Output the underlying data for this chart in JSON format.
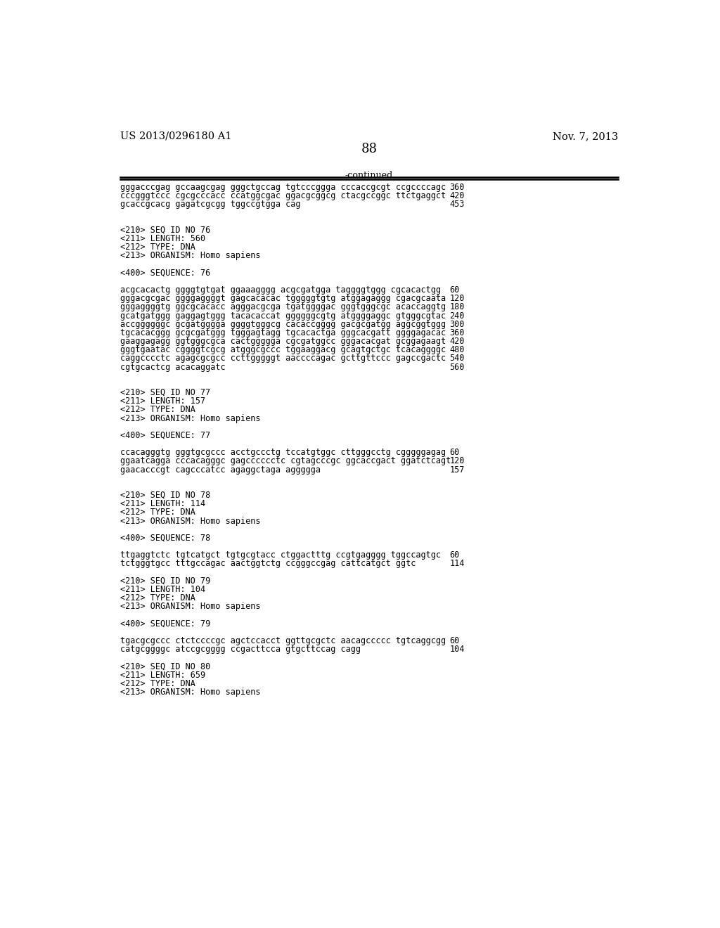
{
  "page_number": "88",
  "left_header": "US 2013/0296180 A1",
  "right_header": "Nov. 7, 2013",
  "continued_label": "-continued",
  "background_color": "#ffffff",
  "text_color": "#000000",
  "font_size_header": 10.5,
  "font_size_body": 9.2,
  "font_size_page_num": 13,
  "mono_size": 8.5,
  "lines": [
    {
      "text": "gggacccgag gccaagcgag gggctgccag tgtcccggga cccaccgcgt ccgccccagc",
      "num": "360",
      "type": "seq"
    },
    {
      "text": "cccgggtccc cgcgcccacc ccatggcgac ggacgcggcg ctacgccggc ttctgaggct",
      "num": "420",
      "type": "seq"
    },
    {
      "text": "gcaccgcacg gagatcgcgg tggccgtgga cag",
      "num": "453",
      "type": "seq"
    },
    {
      "text": "",
      "type": "blank"
    },
    {
      "text": "",
      "type": "blank"
    },
    {
      "text": "<210> SEQ ID NO 76",
      "type": "meta"
    },
    {
      "text": "<211> LENGTH: 560",
      "type": "meta"
    },
    {
      "text": "<212> TYPE: DNA",
      "type": "meta"
    },
    {
      "text": "<213> ORGANISM: Homo sapiens",
      "type": "meta"
    },
    {
      "text": "",
      "type": "blank"
    },
    {
      "text": "<400> SEQUENCE: 76",
      "type": "meta"
    },
    {
      "text": "",
      "type": "blank"
    },
    {
      "text": "acgcacactg ggggtgtgat ggaaagggg acgcgatgga taggggtggg cgcacactgg",
      "num": "60",
      "type": "seq"
    },
    {
      "text": "gggacgcgac ggggaggggt gagcacacac tgggggtgtg atggagaggg cgacgcaata",
      "num": "120",
      "type": "seq"
    },
    {
      "text": "gggaggggtg ggcgcacacc agggacgcga tgatggggac gggtgggcgc acaccaggtg",
      "num": "180",
      "type": "seq"
    },
    {
      "text": "gcatgatggg gaggagtggg tacacaccat ggggggcgtg atggggaggc gtgggcgtac",
      "num": "240",
      "type": "seq"
    },
    {
      "text": "accggggggc gcgatgggga ggggtgggcg cacaccgggg gacgcgatgg aggcggtggg",
      "num": "300",
      "type": "seq"
    },
    {
      "text": "tgcacacggg gcgcgatggg tgggagtagg tgcacactga gggcacgatt ggggagacac",
      "num": "360",
      "type": "seq"
    },
    {
      "text": "gaaggagagg ggtgggcgca cactggggga cgcgatggcc gggacacgat gcggagaagt",
      "num": "420",
      "type": "seq"
    },
    {
      "text": "gggtgaatac cggggtcgcg atgggcgccc tggaaggacg gcagtgctgc tcacaggggc",
      "num": "480",
      "type": "seq"
    },
    {
      "text": "caggcccctc agagcgcgcc ccttgggggt aaccccagac gcttgttccc gagccgactc",
      "num": "540",
      "type": "seq"
    },
    {
      "text": "cgtgcactcg acacaggatc",
      "num": "560",
      "type": "seq"
    },
    {
      "text": "",
      "type": "blank"
    },
    {
      "text": "",
      "type": "blank"
    },
    {
      "text": "<210> SEQ ID NO 77",
      "type": "meta"
    },
    {
      "text": "<211> LENGTH: 157",
      "type": "meta"
    },
    {
      "text": "<212> TYPE: DNA",
      "type": "meta"
    },
    {
      "text": "<213> ORGANISM: Homo sapiens",
      "type": "meta"
    },
    {
      "text": "",
      "type": "blank"
    },
    {
      "text": "<400> SEQUENCE: 77",
      "type": "meta"
    },
    {
      "text": "",
      "type": "blank"
    },
    {
      "text": "ccacagggtg gggtgcgccc acctgccctg tccatgtggc cttgggcctg cgggggagag",
      "num": "60",
      "type": "seq"
    },
    {
      "text": "ggaatcagga cccacagggc gagcccccctc cgtagcccgc ggcaccgact ggatctcagt",
      "num": "120",
      "type": "seq"
    },
    {
      "text": "gaacacccgt cagcccatcc agaggctaga aggggga",
      "num": "157",
      "type": "seq"
    },
    {
      "text": "",
      "type": "blank"
    },
    {
      "text": "",
      "type": "blank"
    },
    {
      "text": "<210> SEQ ID NO 78",
      "type": "meta"
    },
    {
      "text": "<211> LENGTH: 114",
      "type": "meta"
    },
    {
      "text": "<212> TYPE: DNA",
      "type": "meta"
    },
    {
      "text": "<213> ORGANISM: Homo sapiens",
      "type": "meta"
    },
    {
      "text": "",
      "type": "blank"
    },
    {
      "text": "<400> SEQUENCE: 78",
      "type": "meta"
    },
    {
      "text": "",
      "type": "blank"
    },
    {
      "text": "ttgaggtctc tgtcatgct tgtgcgtacc ctggactttg ccgtgagggg tggccagtgc",
      "num": "60",
      "type": "seq"
    },
    {
      "text": "tctgggtgcc tttgccagac aactggtctg ccgggccgag cattcatgct ggtc",
      "num": "114",
      "type": "seq"
    },
    {
      "text": "",
      "type": "blank"
    },
    {
      "text": "<210> SEQ ID NO 79",
      "type": "meta"
    },
    {
      "text": "<211> LENGTH: 104",
      "type": "meta"
    },
    {
      "text": "<212> TYPE: DNA",
      "type": "meta"
    },
    {
      "text": "<213> ORGANISM: Homo sapiens",
      "type": "meta"
    },
    {
      "text": "",
      "type": "blank"
    },
    {
      "text": "<400> SEQUENCE: 79",
      "type": "meta"
    },
    {
      "text": "",
      "type": "blank"
    },
    {
      "text": "tgacgcgccc ctctccccgc agctccacct ggttgcgctc aacagccccc tgtcaggcgg",
      "num": "60",
      "type": "seq"
    },
    {
      "text": "catgcggggc atccgcgggg ccgacttcca gtgcttccag cagg",
      "num": "104",
      "type": "seq"
    },
    {
      "text": "",
      "type": "blank"
    },
    {
      "text": "<210> SEQ ID NO 80",
      "type": "meta"
    },
    {
      "text": "<211> LENGTH: 659",
      "type": "meta"
    },
    {
      "text": "<212> TYPE: DNA",
      "type": "meta"
    },
    {
      "text": "<213> ORGANISM: Homo sapiens",
      "type": "meta"
    }
  ]
}
